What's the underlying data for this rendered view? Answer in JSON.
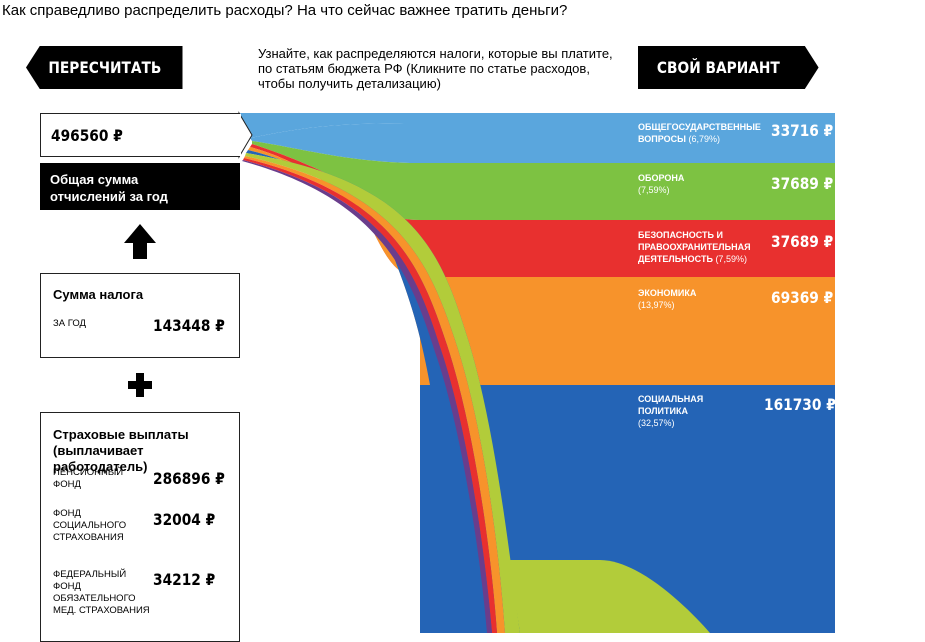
{
  "question": "Как справедливо распределить расходы? На что сейчас важнее тратить деньги?",
  "buttons": {
    "recalculate": "ПЕРЕСЧИТАТЬ",
    "own_variant": "СВОЙ ВАРИАНТ"
  },
  "intro": {
    "line1": "Узнайте, как распределяются налоги, которые вы платите,",
    "line2": "по статьям бюджета РФ (Кликните по статье расходов,",
    "line3": "чтобы получить детализацию)"
  },
  "total": {
    "value": "496560 ₽",
    "label_line1": "Общая сумма",
    "label_line2": "отчислений за год"
  },
  "tax": {
    "title": "Сумма налога",
    "period": "ЗА ГОД",
    "value": "143448 ₽"
  },
  "insurance": {
    "title_line1": "Страховые выплаты",
    "title_line2": "(выплачивает работодатель)",
    "pension": {
      "label_line1": "ПЕНСИОННЫЙ",
      "label_line2": "ФОНД",
      "value": "286896 ₽"
    },
    "social": {
      "label_line1": "ФОНД",
      "label_line2": "СОЦИАЛЬНОГО",
      "label_line3": "СТРАХОВАНИЯ",
      "value": "32004 ₽"
    },
    "medical": {
      "label_line1": "ФЕДЕРАЛЬНЫЙ",
      "label_line2": "ФОНД",
      "label_line3": "ОБЯЗАТЕЛЬНОГО",
      "label_line4": "МЕД. СТРАХОВАНИЯ",
      "value": "34212 ₽"
    }
  },
  "categories": [
    {
      "line1": "ОБЩЕГОСУДАРСТВЕННЫЕ",
      "line2": "ВОПРОСЫ",
      "pct": "(6,79%)",
      "value": "33716 ₽",
      "color": "#5aa6dd"
    },
    {
      "line1": "ОБОРОНА",
      "line2": "",
      "pct": "(7,59%)",
      "value": "37689 ₽",
      "color": "#7dc242"
    },
    {
      "line1": "БЕЗОПАСНОСТЬ И",
      "line2": "ПРАВООХРАНИТЕЛЬНАЯ",
      "line3": "ДЕЯТЕЛЬНОСТЬ",
      "pct": "(7,59%)",
      "value": "37689 ₽",
      "color": "#e8302f"
    },
    {
      "line1": "ЭКОНОМИКА",
      "line2": "",
      "pct": "(13,97%)",
      "value": "69369 ₽",
      "color": "#f7932b"
    },
    {
      "line1": "СОЦИАЛЬНАЯ",
      "line2": "ПОЛИТИКА",
      "pct": "(32,57%)",
      "value": "161730 ₽",
      "color": "#2464b6"
    }
  ],
  "lower_colors": [
    "#b2cc3a",
    "#f7932b",
    "#e8302f",
    "#7dc242"
  ],
  "arrow_up_icon": "arrow-up-icon",
  "plus_icon": "plus-icon"
}
